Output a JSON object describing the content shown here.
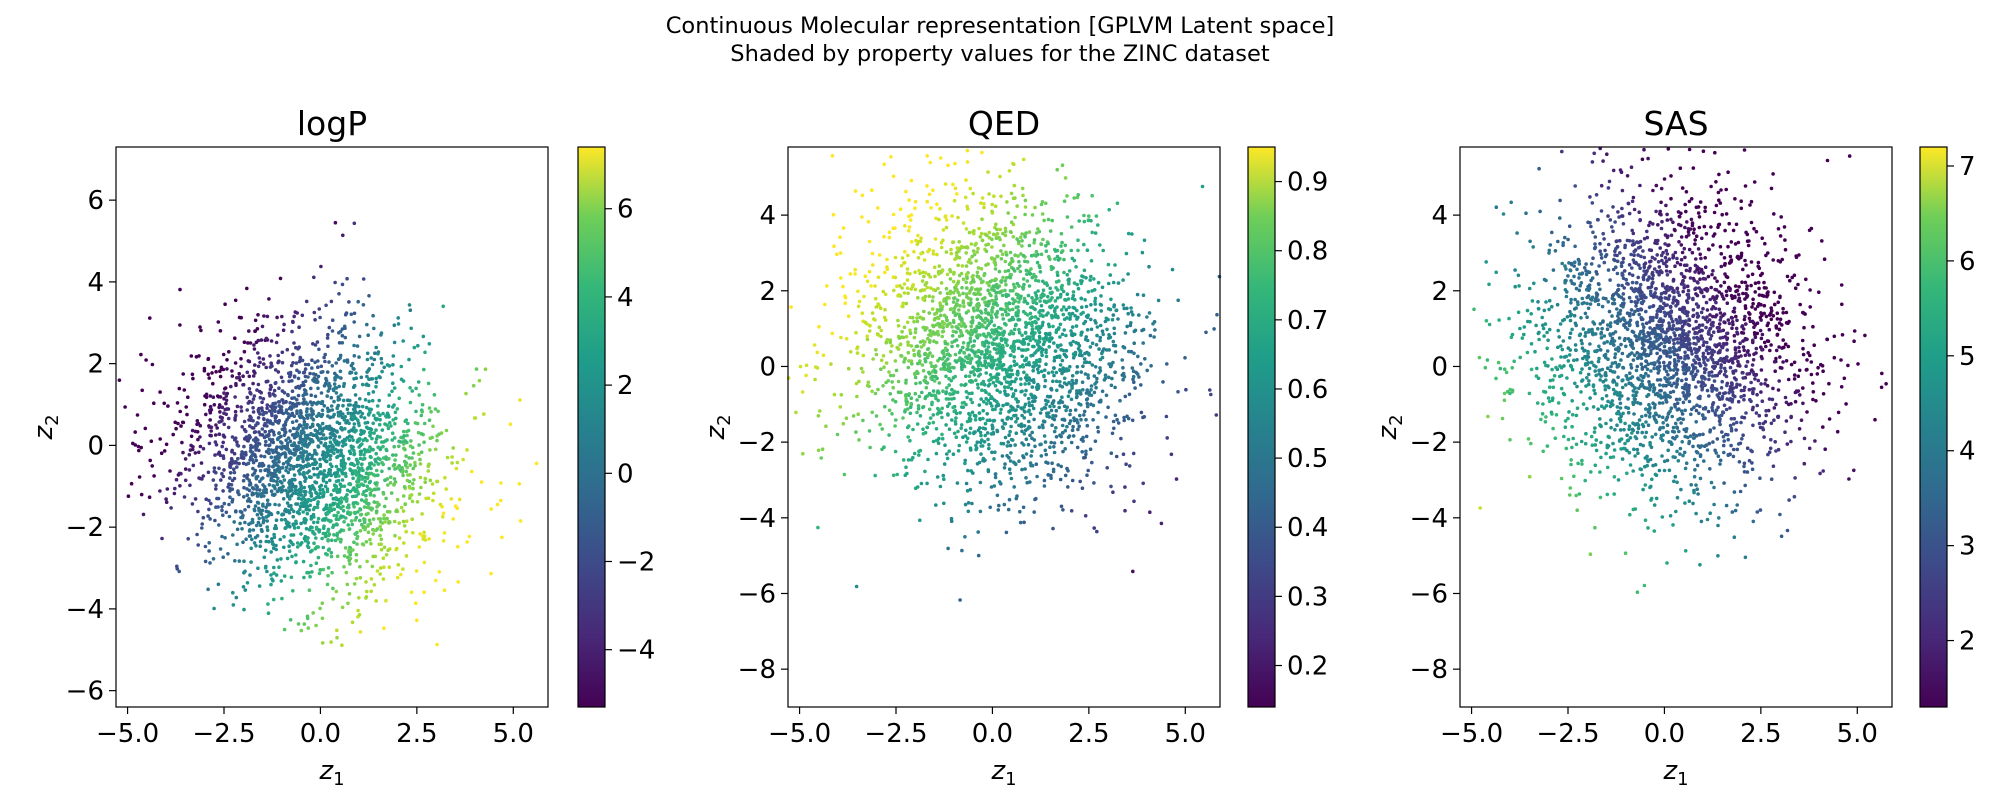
{
  "figure": {
    "title_line1": "Continuous Molecular representation [GPLVM Latent space]",
    "title_line2": "Shaded by property values for the ZINC dataset"
  },
  "chart_data": [
    {
      "type": "scatter",
      "title": "logP",
      "xlabel": "z1",
      "ylabel": "z2",
      "xlim": [
        -5.3,
        5.9
      ],
      "ylim": [
        -6.4,
        7.3
      ],
      "xticks": [
        -5.0,
        -2.5,
        0.0,
        2.5,
        5.0
      ],
      "xtick_labels": [
        "−5.0",
        "−2.5",
        "0.0",
        "2.5",
        "5.0"
      ],
      "yticks": [
        -6,
        -4,
        -2,
        0,
        2,
        4,
        6
      ],
      "ytick_labels": [
        "−6",
        "−4",
        "−2",
        "0",
        "2",
        "4",
        "6"
      ],
      "colormap": "viridis",
      "colorbar": {
        "range": [
          -5.3,
          7.4
        ],
        "ticks": [
          -4,
          -2,
          0,
          2,
          4,
          6
        ],
        "tick_labels": [
          "−4",
          "−2",
          "0",
          "2",
          "4",
          "6"
        ]
      },
      "point_cloud": {
        "center": [
          -0.2,
          -0.3
        ],
        "spread": [
          1.7,
          1.5
        ],
        "tilt": -0.45,
        "count": 2600
      },
      "color_trend": "increases toward lower-right (high z1, low z2)"
    },
    {
      "type": "scatter",
      "title": "QED",
      "xlabel": "z1",
      "ylabel": "z2",
      "xlim": [
        -5.3,
        5.9
      ],
      "ylim": [
        -9.0,
        5.8
      ],
      "xticks": [
        -5.0,
        -2.5,
        0.0,
        2.5,
        5.0
      ],
      "xtick_labels": [
        "−5.0",
        "−2.5",
        "0.0",
        "2.5",
        "5.0"
      ],
      "yticks": [
        -8,
        -6,
        -4,
        -2,
        0,
        2,
        4
      ],
      "ytick_labels": [
        "−8",
        "−6",
        "−4",
        "−2",
        "0",
        "2",
        "4"
      ],
      "colormap": "viridis",
      "colorbar": {
        "range": [
          0.14,
          0.95
        ],
        "ticks": [
          0.2,
          0.3,
          0.4,
          0.5,
          0.6,
          0.7,
          0.8,
          0.9
        ],
        "tick_labels": [
          "0.2",
          "0.3",
          "0.4",
          "0.5",
          "0.6",
          "0.7",
          "0.8",
          "0.9"
        ]
      },
      "point_cloud": {
        "center": [
          0.2,
          0.6
        ],
        "spread": [
          1.8,
          1.9
        ],
        "tilt": 0.25,
        "count": 2600
      },
      "color_trend": "high in upper-left, low in lower-right"
    },
    {
      "type": "scatter",
      "title": "SAS",
      "xlabel": "z1",
      "ylabel": "z2",
      "xlim": [
        -5.3,
        5.9
      ],
      "ylim": [
        -9.0,
        5.8
      ],
      "xticks": [
        -5.0,
        -2.5,
        0.0,
        2.5,
        5.0
      ],
      "xtick_labels": [
        "−5.0",
        "−2.5",
        "0.0",
        "2.5",
        "5.0"
      ],
      "yticks": [
        -8,
        -6,
        -4,
        -2,
        0,
        2,
        4
      ],
      "ytick_labels": [
        "−8",
        "−6",
        "−4",
        "−2",
        "0",
        "2",
        "4"
      ],
      "colormap": "viridis",
      "colorbar": {
        "range": [
          1.3,
          7.2
        ],
        "ticks": [
          2,
          3,
          4,
          5,
          6,
          7
        ],
        "tick_labels": [
          "2",
          "3",
          "4",
          "5",
          "6",
          "7"
        ]
      },
      "point_cloud": {
        "center": [
          0.2,
          0.6
        ],
        "spread": [
          1.8,
          1.9
        ],
        "tilt": 0.25,
        "count": 2600
      },
      "color_trend": "high at lower-left, low on the right"
    }
  ]
}
